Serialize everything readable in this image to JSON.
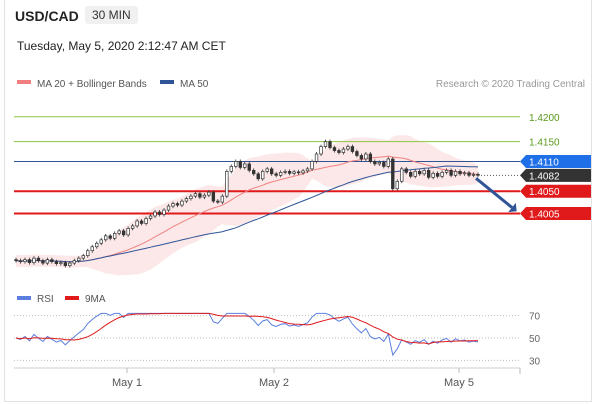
{
  "header": {
    "pair": "USD/CAD",
    "timeframe": "30 MIN",
    "timestamp": "Tuesday, May 5, 2020 2:12:47 AM CET"
  },
  "legend": {
    "ma20": {
      "label": "MA 20 + Bollinger Bands",
      "color": "#f08080"
    },
    "ma50": {
      "label": "MA 50",
      "color": "#2f5597"
    },
    "source": "Research © 2020 Trading Central"
  },
  "chart_data": [
    {
      "type": "candlestick",
      "x_ticks": [
        "May 1",
        "May 2",
        "May 5"
      ],
      "ylim": [
        1.3875,
        1.425
      ],
      "levels": [
        {
          "label": "1.4200",
          "value": 1.42,
          "color": "#8cc63f",
          "kind": "resistance"
        },
        {
          "label": "1.4150",
          "value": 1.415,
          "color": "#8cc63f",
          "kind": "resistance"
        },
        {
          "label": "1.4110",
          "value": 1.411,
          "color": "#2f5597",
          "kind": "ma50"
        },
        {
          "label": "1.4050",
          "value": 1.405,
          "color": "#e0191b",
          "kind": "support"
        },
        {
          "label": "1.4005",
          "value": 1.4005,
          "color": "#e0191b",
          "kind": "support"
        }
      ],
      "last_price": {
        "label": "1.4082",
        "value": 1.4082,
        "color": "#333333"
      },
      "forecast_arrow": {
        "from": 1.4082,
        "to": 1.4005,
        "color": "#2f5597"
      },
      "close": [
        1.391,
        1.3908,
        1.3912,
        1.3906,
        1.3915,
        1.391,
        1.3905,
        1.3912,
        1.3908,
        1.3904,
        1.3906,
        1.39,
        1.3905,
        1.391,
        1.3915,
        1.392,
        1.393,
        1.3938,
        1.3945,
        1.3952,
        1.396,
        1.3955,
        1.3965,
        1.397,
        1.3962,
        1.3975,
        1.398,
        1.399,
        1.3985,
        1.3995,
        1.4,
        1.4008,
        1.4003,
        1.4012,
        1.402,
        1.4025,
        1.4022,
        1.403,
        1.4035,
        1.404,
        1.4045,
        1.4038,
        1.4042,
        1.4048,
        1.403,
        1.4028,
        1.404,
        1.409,
        1.41,
        1.411,
        1.4098,
        1.4105,
        1.4092,
        1.4085,
        1.4075,
        1.409,
        1.4095,
        1.4085,
        1.4082,
        1.4088,
        1.409,
        1.4086,
        1.4089,
        1.4087,
        1.4091,
        1.4095,
        1.411,
        1.4125,
        1.414,
        1.415,
        1.4138,
        1.4132,
        1.4128,
        1.4135,
        1.414,
        1.413,
        1.4122,
        1.4115,
        1.4125,
        1.411,
        1.4105,
        1.4108,
        1.41,
        1.4115,
        1.4055,
        1.407,
        1.4095,
        1.4088,
        1.408,
        1.409,
        1.4085,
        1.4092,
        1.4078,
        1.4086,
        1.408,
        1.4088,
        1.4092,
        1.4082,
        1.409,
        1.4085,
        1.4087,
        1.4082,
        1.4084,
        1.4082
      ]
    },
    {
      "type": "line",
      "title": "RSI",
      "series": [
        {
          "name": "RSI",
          "color": "#5b7fe0"
        },
        {
          "name": "9MA",
          "color": "#e0191b"
        }
      ],
      "ylim": [
        25,
        75
      ],
      "y_ticks": [
        70,
        50,
        30
      ]
    }
  ]
}
